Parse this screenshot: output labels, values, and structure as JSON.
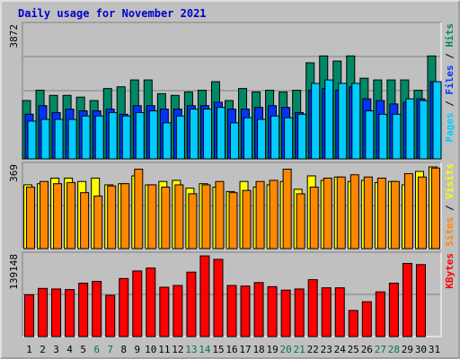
{
  "chart_data": {
    "type": "bar",
    "title": "Daily usage for November 2021",
    "categories": [
      "1",
      "2",
      "3",
      "4",
      "5",
      "6",
      "7",
      "8",
      "9",
      "10",
      "11",
      "12",
      "13",
      "14",
      "15",
      "16",
      "17",
      "18",
      "19",
      "20",
      "21",
      "22",
      "23",
      "24",
      "25",
      "26",
      "27",
      "28",
      "29",
      "30",
      "31"
    ],
    "weekend_days": [
      "6",
      "7",
      "13",
      "14",
      "20",
      "21",
      "27",
      "28"
    ],
    "panels": [
      {
        "name": "hits-files-pages",
        "max_label": "3872",
        "ylim": [
          0,
          3872
        ],
        "legend": [
          {
            "label": "Pages",
            "color": "#00ccff"
          },
          {
            "label": " / ",
            "color": "#000000"
          },
          {
            "label": "Files",
            "color": "#0033ff"
          },
          {
            "label": " / ",
            "color": "#000000"
          },
          {
            "label": "Hits",
            "color": "#008866"
          }
        ],
        "series": [
          {
            "name": "Hits",
            "color": "#008866",
            "values": [
              1700,
              2000,
              1850,
              1850,
              1800,
              1700,
              2050,
              2100,
              2300,
              2300,
              1900,
              1850,
              1950,
              2000,
              2250,
              1700,
              2050,
              1950,
              2000,
              1950,
              2000,
              2800,
              3000,
              2850,
              3000,
              2350,
              2300,
              2300,
              2300,
              2000,
              3000
            ]
          },
          {
            "name": "Files",
            "color": "#0033ff",
            "values": [
              1300,
              1550,
              1350,
              1450,
              1400,
              1400,
              1450,
              1300,
              1550,
              1550,
              1450,
              1450,
              1550,
              1550,
              1650,
              1450,
              1450,
              1500,
              1550,
              1500,
              1350,
              2000,
              2050,
              2000,
              2100,
              1750,
              1700,
              1600,
              1650,
              1750,
              2250
            ]
          },
          {
            "name": "Pages",
            "color": "#00ccff",
            "values": [
              1100,
              1150,
              1150,
              1150,
              1250,
              1250,
              1350,
              1250,
              1350,
              1400,
              1050,
              1250,
              1450,
              1450,
              1500,
              1050,
              1200,
              1150,
              1250,
              1200,
              1300,
              2200,
              2300,
              2200,
              2200,
              1400,
              1300,
              1300,
              1750,
              1700,
              2250
            ]
          }
        ]
      },
      {
        "name": "visits-sites",
        "max_label": "369",
        "ylim": [
          0,
          369
        ],
        "legend": [
          {
            "label": "Sites",
            "color": "#ff8800"
          },
          {
            "label": " / ",
            "color": "#000000"
          },
          {
            "label": "Visits",
            "color": "#ffff00"
          }
        ],
        "series": [
          {
            "name": "Visits",
            "color": "#ffff00",
            "values": [
              285,
              290,
              315,
              315,
              300,
              315,
              285,
              290,
              325,
              285,
              300,
              305,
              270,
              290,
              275,
              255,
              300,
              275,
              285,
              300,
              265,
              325,
              305,
              320,
              300,
              305,
              295,
              300,
              285,
              345,
              365
            ]
          },
          {
            "name": "Sites",
            "color": "#ff8800",
            "values": [
              275,
              300,
              290,
              295,
              250,
              235,
              280,
              290,
              355,
              285,
              275,
              285,
              245,
              285,
              300,
              250,
              260,
              300,
              305,
              355,
              245,
              275,
              315,
              320,
              330,
              320,
              315,
              300,
              335,
              320,
              360
            ]
          }
        ]
      },
      {
        "name": "kbytes",
        "max_label": "139148",
        "ylim": [
          0,
          139148
        ],
        "legend": [
          {
            "label": "KBytes",
            "color": "#ff0000"
          }
        ],
        "series": [
          {
            "name": "KBytes",
            "color": "#ff0000",
            "values": [
              72000,
              83000,
              82000,
              81000,
              92000,
              95000,
              71000,
              100000,
              113000,
              118000,
              85000,
              88000,
              111000,
              139000,
              133000,
              88000,
              87000,
              93000,
              86000,
              80000,
              82000,
              98000,
              84000,
              84000,
              45000,
              60000,
              77000,
              92000,
              126000,
              124000,
              0
            ]
          }
        ]
      }
    ]
  }
}
